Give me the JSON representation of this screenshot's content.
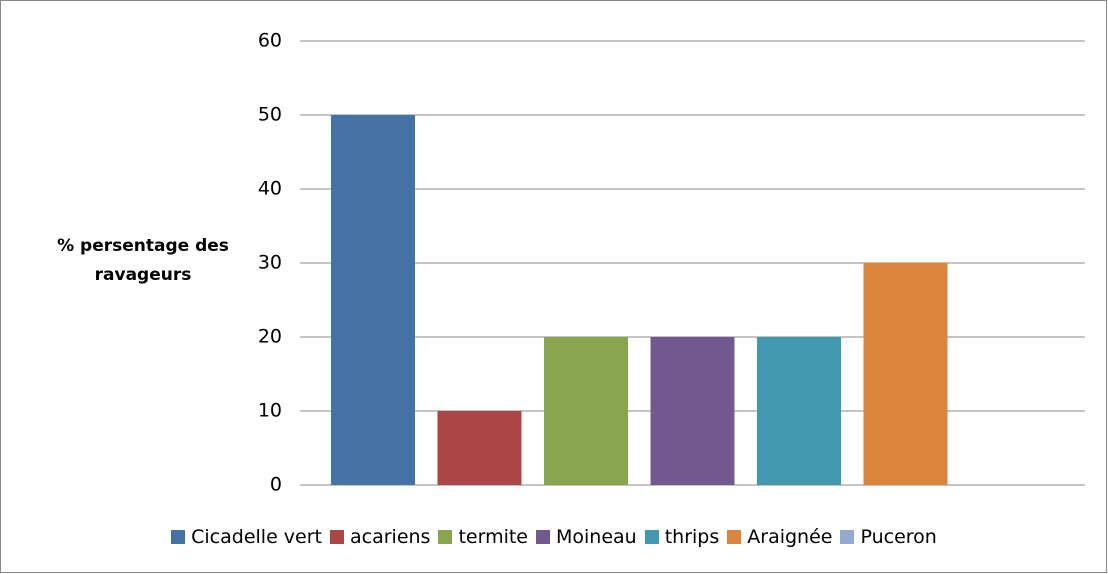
{
  "chart_data": {
    "type": "bar",
    "y_label": "% persentage des ravageurs",
    "categories": [
      null
    ],
    "series": [
      {
        "name": "Cicadelle vert",
        "color": "#4572a7",
        "values": [
          50
        ]
      },
      {
        "name": "acariens",
        "color": "#aa4643",
        "values": [
          10
        ]
      },
      {
        "name": "termite",
        "color": "#89a54e",
        "values": [
          20
        ]
      },
      {
        "name": "Moineau",
        "color": "#71588f",
        "values": [
          20
        ]
      },
      {
        "name": "thrips",
        "color": "#4198af",
        "values": [
          20
        ]
      },
      {
        "name": "Araignée",
        "color": "#db843d",
        "values": [
          30
        ]
      },
      {
        "name": "Puceron",
        "color": "#93a9cf",
        "values": [
          0
        ]
      }
    ],
    "ylim": [
      0,
      60
    ],
    "yticks": [
      0,
      10,
      20,
      30,
      40,
      50,
      60
    ],
    "grid": true,
    "legend": "bottom"
  }
}
